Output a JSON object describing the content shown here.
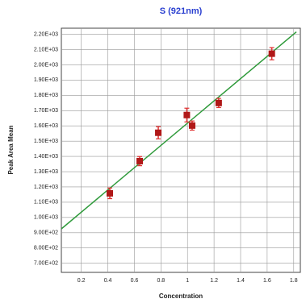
{
  "chart_data": {
    "type": "scatter",
    "title": "S (921nm)",
    "x_label": "Concentration",
    "y_label": "Peak Area Mean",
    "xlim": [
      0.05,
      1.85
    ],
    "ylim": [
      640,
      2240
    ],
    "xticks": [
      0.2,
      0.4,
      0.6,
      0.8,
      1,
      1.2,
      1.4,
      1.6,
      1.8
    ],
    "yticks": [
      {
        "value": 700,
        "label": "7.00E+02"
      },
      {
        "value": 800,
        "label": "8.00E+02"
      },
      {
        "value": 900,
        "label": "9.00E+02"
      },
      {
        "value": 1000,
        "label": "1.00E+03"
      },
      {
        "value": 1100,
        "label": "1.10E+03"
      },
      {
        "value": 1200,
        "label": "1.20E+03"
      },
      {
        "value": 1300,
        "label": "1.30E+03"
      },
      {
        "value": 1400,
        "label": "1.40E+03"
      },
      {
        "value": 1500,
        "label": "1.50E+03"
      },
      {
        "value": 1600,
        "label": "1.60E+03"
      },
      {
        "value": 1700,
        "label": "1.70E+03"
      },
      {
        "value": 1800,
        "label": "1.80E+03"
      },
      {
        "value": 1900,
        "label": "1.90E+03"
      },
      {
        "value": 2000,
        "label": "2.00E+03"
      },
      {
        "value": 2100,
        "label": "2.10E+03"
      },
      {
        "value": 2200,
        "label": "2.20E+03"
      }
    ],
    "grid": true,
    "series": [
      {
        "kind": "points",
        "color": "#b01818",
        "error_color": "#e03030",
        "x": [
          0.415,
          0.64,
          0.78,
          0.995,
          1.035,
          1.235,
          1.635
        ],
        "values": [
          1158,
          1369,
          1555,
          1671,
          1602,
          1750,
          2073
        ],
        "errors": [
          35,
          30,
          40,
          45,
          30,
          30,
          40
        ]
      },
      {
        "kind": "fit",
        "color": "#2e9a3a",
        "x": [
          0.05,
          1.82
        ],
        "values": [
          925,
          2216
        ]
      }
    ]
  }
}
